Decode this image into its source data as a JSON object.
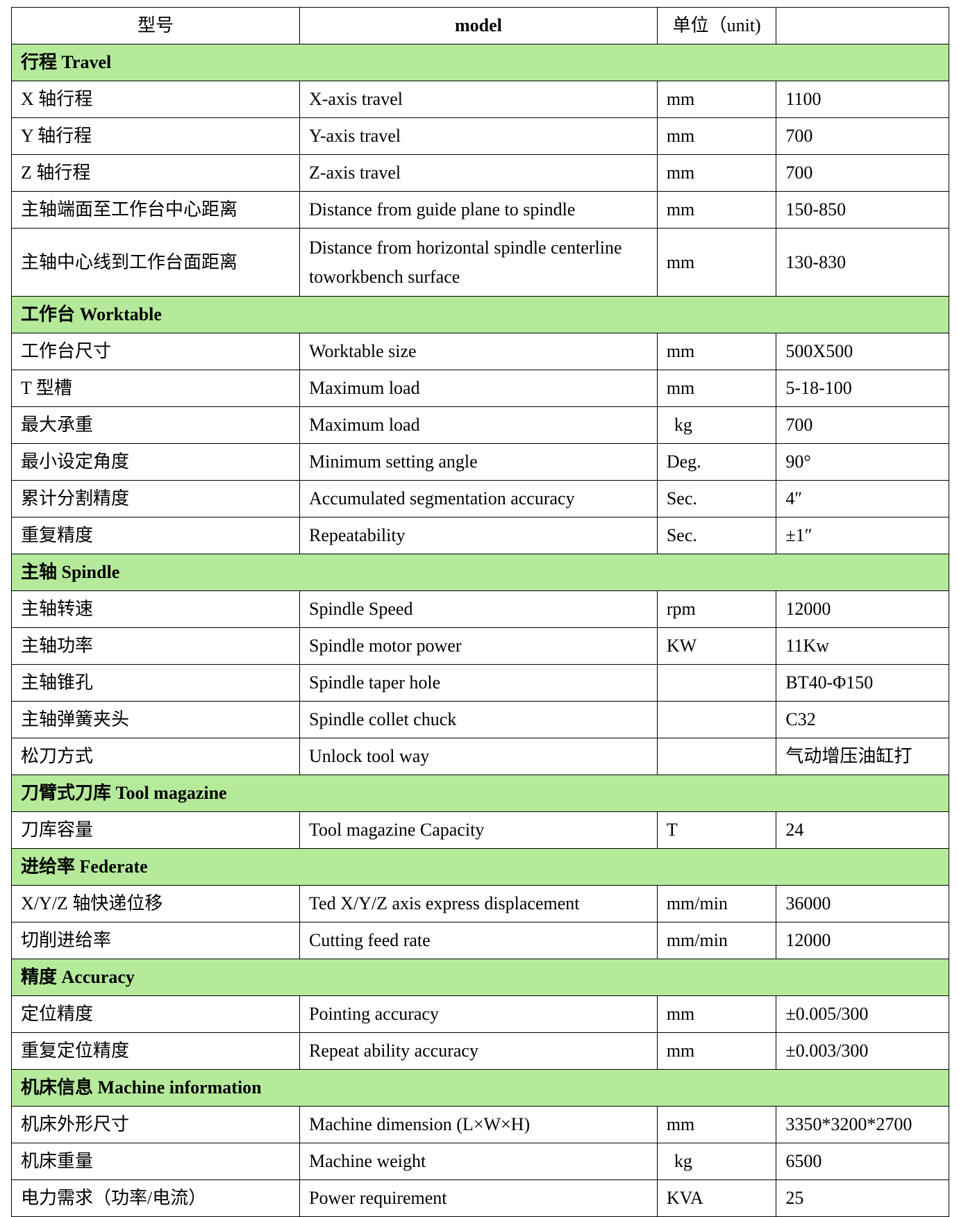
{
  "header": {
    "col1": "型号",
    "col2": "model",
    "col3": "单位（unit)",
    "col4": ""
  },
  "colors": {
    "section_bg": "#b5ea9b"
  },
  "groups": [
    {
      "title": "行程 Travel",
      "rows": [
        [
          "X 轴行程",
          "X-axis travel",
          "mm",
          "1100"
        ],
        [
          "Y 轴行程",
          "Y-axis travel",
          "mm",
          "700"
        ],
        [
          "Z 轴行程",
          "Z-axis travel",
          "mm",
          "700"
        ],
        [
          "主轴端面至工作台中心距离",
          "Distance from guide plane to spindle",
          "mm",
          "150-850"
        ],
        [
          "主轴中心线到工作台面距离",
          "Distance from horizontal spindle centerline toworkbench surface",
          "mm",
          "130-830"
        ]
      ]
    },
    {
      "title": "工作台 Worktable",
      "rows": [
        [
          "工作台尺寸",
          "Worktable size",
          "mm",
          "500X500"
        ],
        [
          "T 型槽",
          "Maximum load",
          "mm",
          "5-18-100"
        ],
        [
          "最大承重",
          "Maximum load",
          "kg",
          "700"
        ],
        [
          "最小设定角度",
          "Minimum setting angle",
          "Deg.",
          "90°"
        ],
        [
          "累计分割精度",
          "Accumulated segmentation accuracy",
          "Sec.",
          "4″"
        ],
        [
          "重复精度",
          "Repeatability",
          "Sec.",
          "±1″"
        ]
      ]
    },
    {
      "title": "主轴 Spindle",
      "rows": [
        [
          "主轴转速",
          "Spindle Speed",
          "rpm",
          "12000"
        ],
        [
          "主轴功率",
          "Spindle motor power",
          "KW",
          "11Kw"
        ],
        [
          "主轴锥孔",
          "Spindle taper hole",
          "",
          "BT40-Φ150"
        ],
        [
          "主轴弹簧夹头",
          "Spindle collet chuck",
          "",
          "C32"
        ],
        [
          "松刀方式",
          "Unlock tool way",
          "",
          "气动增压油缸打"
        ]
      ]
    },
    {
      "title": "刀臂式刀库 Tool magazine",
      "rows": [
        [
          "刀库容量",
          "Tool magazine Capacity",
          "T",
          "24"
        ]
      ]
    },
    {
      "title": "进给率 Federate",
      "rows": [
        [
          "X/Y/Z 轴快递位移",
          "Ted X/Y/Z axis express displacement",
          "mm/min",
          "36000"
        ],
        [
          "切削进给率",
          "Cutting feed rate",
          "mm/min",
          "12000"
        ]
      ]
    },
    {
      "title": "精度 Accuracy",
      "rows": [
        [
          "定位精度",
          "Pointing accuracy",
          "mm",
          "±0.005/300"
        ],
        [
          "重复定位精度",
          "Repeat ability accuracy",
          "mm",
          "±0.003/300"
        ]
      ]
    },
    {
      "title": "机床信息 Machine information",
      "rows": [
        [
          "机床外形尺寸",
          "Machine dimension (L×W×H)",
          "mm",
          "3350*3200*2700"
        ],
        [
          "机床重量",
          "Machine weight",
          "kg",
          "6500"
        ],
        [
          "电力需求（功率/电流）",
          "Power requirement",
          "KVA",
          "25"
        ]
      ]
    }
  ]
}
